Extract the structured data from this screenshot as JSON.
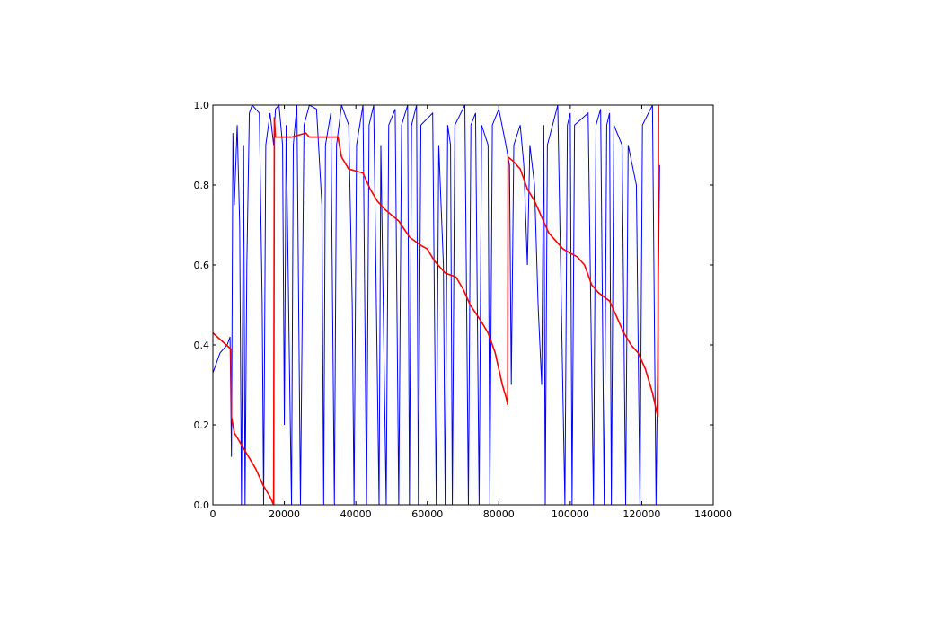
{
  "chart_data": {
    "type": "line",
    "xlim": [
      0,
      140000
    ],
    "xticks": [
      0,
      20000,
      40000,
      60000,
      80000,
      100000,
      120000,
      140000
    ],
    "ylim": [
      0,
      1
    ],
    "yticks": [
      {
        "value": 0,
        "label": "0.0"
      },
      0.2,
      0.4,
      0.6,
      0.8,
      {
        "value": 1,
        "label": "1.0"
      }
    ],
    "series": [
      {
        "color": "#0000ff",
        "x": [
          0,
          2000,
          4000,
          4800,
          5200,
          5600,
          6000,
          6800,
          7500,
          8000,
          8600,
          9000,
          9500,
          10200,
          11000,
          13000,
          13800,
          14200,
          14800,
          16000,
          17000,
          17500,
          18500,
          19500,
          20000,
          20500,
          21500,
          22000,
          22500,
          23500,
          24500,
          25500,
          27000,
          29000,
          30500,
          31000,
          31500,
          33000,
          34000,
          34600,
          36000,
          38000,
          39000,
          39500,
          40200,
          42000,
          43000,
          43700,
          45000,
          46500,
          47000,
          48500,
          49200,
          51000,
          52000,
          52800,
          54500,
          55000,
          55600,
          57000,
          57500,
          58200,
          61500,
          62500,
          63200,
          64500,
          65000,
          65700,
          66500,
          67000,
          67700,
          70500,
          71500,
          72200,
          73500,
          74500,
          75200,
          77000,
          77500,
          78200,
          80000,
          82000,
          83000,
          83500,
          84200,
          86000,
          87000,
          88000,
          88700,
          90000,
          91000,
          92000,
          92600,
          93000,
          93600,
          96500,
          98500,
          99200,
          100000,
          100500,
          101200,
          105000,
          106500,
          107200,
          108500,
          109500,
          110200,
          111000,
          111500,
          112200,
          114500,
          115500,
          116200,
          118500,
          119500,
          120200,
          123000,
          124000,
          124500,
          125000
        ],
        "values": [
          0.33,
          0.38,
          0.4,
          0.42,
          0.12,
          0.93,
          0.75,
          0.95,
          0.7,
          0,
          0.9,
          0,
          0.6,
          0.98,
          1.0,
          0.98,
          0.5,
          0,
          0.9,
          0.98,
          0.9,
          0.99,
          1.0,
          0.9,
          0.2,
          0.95,
          0.3,
          0,
          0.9,
          1.0,
          0,
          0.95,
          1.0,
          0.99,
          0.75,
          0,
          0.9,
          0.98,
          0,
          0.9,
          1.0,
          0.95,
          0.5,
          0,
          0.9,
          1.0,
          0,
          0.95,
          1.0,
          0,
          0.9,
          0,
          0.95,
          0.99,
          0,
          0.95,
          1.0,
          0,
          0.95,
          1.0,
          0,
          0.95,
          0.98,
          0,
          0.9,
          0.6,
          0,
          0.95,
          0.9,
          0,
          0.95,
          1.0,
          0,
          0.95,
          0.98,
          0,
          0.95,
          0.9,
          0,
          0.95,
          0.99,
          0.9,
          0.85,
          0.3,
          0.9,
          0.95,
          0.85,
          0.6,
          0.9,
          0.8,
          0.5,
          0.3,
          0.95,
          0,
          0.9,
          1.0,
          0,
          0.95,
          0.98,
          0,
          0.95,
          0.98,
          0,
          0.95,
          0.99,
          0,
          0.95,
          0.98,
          0,
          0.95,
          0.9,
          0,
          0.9,
          0.8,
          0,
          0.95,
          1.0,
          0,
          0.4,
          0.85
        ]
      },
      {
        "color": "#ff0000",
        "x": [
          0,
          5000,
          5200,
          6000,
          8000,
          10000,
          12000,
          14000,
          16000,
          17000,
          17200,
          17500,
          22000,
          26000,
          27000,
          35000,
          36000,
          38000,
          42000,
          44000,
          46000,
          48000,
          52000,
          55000,
          58000,
          60000,
          62000,
          65000,
          68000,
          70000,
          72000,
          75000,
          77000,
          79000,
          81000,
          82000,
          82500,
          82600,
          84000,
          86000,
          88000,
          90000,
          92000,
          94000,
          96000,
          98000,
          100000,
          102000,
          104000,
          106000,
          108000,
          111000,
          113000,
          115000,
          117000,
          119000,
          121000,
          123000,
          124500,
          124700
        ],
        "values": [
          0.43,
          0.39,
          0.22,
          0.18,
          0.15,
          0.12,
          0.09,
          0.05,
          0.02,
          0,
          0.97,
          0.92,
          0.92,
          0.93,
          0.92,
          0.92,
          0.87,
          0.84,
          0.83,
          0.79,
          0.76,
          0.74,
          0.71,
          0.67,
          0.65,
          0.64,
          0.61,
          0.58,
          0.57,
          0.54,
          0.5,
          0.46,
          0.43,
          0.38,
          0.3,
          0.27,
          0.25,
          0.87,
          0.86,
          0.84,
          0.79,
          0.76,
          0.72,
          0.68,
          0.66,
          0.64,
          0.63,
          0.62,
          0.6,
          0.55,
          0.53,
          0.51,
          0.47,
          0.43,
          0.4,
          0.38,
          0.34,
          0.28,
          0.22,
          1.0
        ]
      }
    ]
  }
}
